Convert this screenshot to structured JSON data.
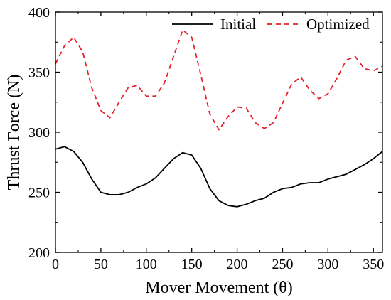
{
  "chart_data": {
    "type": "line",
    "xlabel": "Mover Movement (θ)",
    "ylabel": "Thrust Force (N)",
    "xlim": [
      0,
      360
    ],
    "ylim": [
      200,
      400
    ],
    "x_ticks": [
      0,
      50,
      100,
      150,
      200,
      250,
      300,
      350
    ],
    "y_ticks": [
      200,
      250,
      300,
      350,
      400
    ],
    "grid": false,
    "legend_position": "top-right",
    "series": [
      {
        "name": "Initial",
        "color": "#000000",
        "line_style": "solid",
        "x": [
          0,
          10,
          20,
          30,
          40,
          50,
          60,
          70,
          80,
          90,
          100,
          110,
          120,
          130,
          140,
          150,
          160,
          170,
          180,
          190,
          200,
          210,
          220,
          230,
          240,
          250,
          260,
          270,
          280,
          290,
          300,
          310,
          320,
          330,
          340,
          350,
          360
        ],
        "values": [
          286,
          288,
          284,
          275,
          261,
          250,
          248,
          248,
          250,
          254,
          257,
          262,
          270,
          278,
          283,
          281,
          270,
          253,
          243,
          239,
          238,
          240,
          243,
          245,
          250,
          253,
          254,
          257,
          258,
          258,
          261,
          263,
          265,
          269,
          273,
          278,
          284
        ]
      },
      {
        "name": "Optimized",
        "color": "#e8202a",
        "line_style": "dashed",
        "x": [
          0,
          10,
          20,
          30,
          40,
          50,
          60,
          70,
          80,
          90,
          100,
          110,
          120,
          130,
          140,
          150,
          160,
          170,
          180,
          190,
          200,
          210,
          220,
          230,
          240,
          250,
          260,
          270,
          280,
          290,
          300,
          310,
          320,
          330,
          340,
          350,
          360
        ],
        "values": [
          357,
          372,
          379,
          367,
          337,
          318,
          312,
          325,
          337,
          339,
          330,
          330,
          341,
          363,
          385,
          379,
          348,
          315,
          302,
          313,
          321,
          320,
          308,
          303,
          308,
          324,
          340,
          346,
          335,
          328,
          332,
          345,
          360,
          363,
          353,
          351,
          355
        ]
      }
    ]
  }
}
